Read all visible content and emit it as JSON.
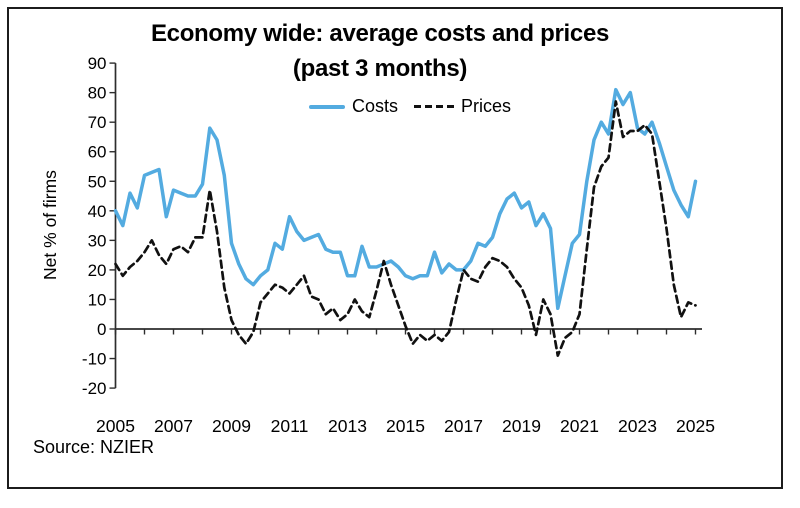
{
  "window": {
    "background": "#ffffff",
    "border_color": "#1c1c1c"
  },
  "title": {
    "line1": "Economy wide: average costs and prices",
    "line2": "(past 3 months)"
  },
  "legend": {
    "items": [
      {
        "label": "Costs",
        "style": "solid",
        "color": "#53ABE0"
      },
      {
        "label": "Prices",
        "style": "dashed",
        "color": "#111111"
      }
    ]
  },
  "source_label": "Source: NZIER",
  "chart_data": {
    "type": "line",
    "title": "Economy wide: average costs and prices (past 3 months)",
    "xlabel": "",
    "ylabel": "Net % of firms",
    "ylim": [
      -20,
      90
    ],
    "y_tick_step": 10,
    "grid": false,
    "legend_position": "top-center",
    "frequency": "quarterly",
    "x_start": 2005.0,
    "x_step": 0.25,
    "x_end": 2025.0,
    "x_tick_years_start": 2005,
    "x_tick_years_end": 2025,
    "x_label_years": [
      2005,
      2007,
      2009,
      2011,
      2013,
      2015,
      2017,
      2019,
      2021,
      2023,
      2025
    ],
    "axis_color": "#2d2d2d",
    "series": [
      {
        "name": "Costs",
        "color": "#53ABE0",
        "line_style": "solid",
        "values": [
          40,
          35,
          46,
          41,
          52,
          53,
          54,
          38,
          47,
          46,
          45,
          45,
          49,
          68,
          64,
          52,
          29,
          22,
          17,
          15,
          18,
          20,
          29,
          27,
          38,
          33,
          30,
          31,
          32,
          27,
          26,
          26,
          18,
          18,
          28,
          21,
          21,
          22,
          23,
          21,
          18,
          17,
          18,
          18,
          26,
          19,
          22,
          20,
          20,
          23,
          29,
          28,
          31,
          39,
          44,
          46,
          41,
          43,
          35,
          39,
          34,
          7,
          18,
          29,
          32,
          50,
          64,
          70,
          66,
          81,
          76,
          80,
          68,
          66,
          70,
          63,
          55,
          47,
          42,
          38,
          50
        ]
      },
      {
        "name": "Prices",
        "color": "#111111",
        "line_style": "dashed",
        "values": [
          22,
          18,
          21,
          23,
          26,
          30,
          25,
          22,
          27,
          28,
          26,
          31,
          31,
          47,
          33,
          14,
          3,
          -2,
          -5,
          -1,
          9,
          12,
          15,
          14,
          12,
          15,
          18,
          11,
          10,
          5,
          7,
          3,
          5,
          10,
          6,
          4,
          13,
          23,
          15,
          8,
          1,
          -5,
          -2,
          -4,
          -2,
          -4,
          -1,
          10,
          20,
          17,
          16,
          21,
          24,
          23,
          21,
          17,
          14,
          8,
          -2,
          10,
          5,
          -9,
          -3,
          -1,
          5,
          27,
          48,
          55,
          58,
          77,
          65,
          67,
          67,
          69,
          66,
          50,
          34,
          15,
          4,
          9,
          8
        ]
      }
    ]
  }
}
